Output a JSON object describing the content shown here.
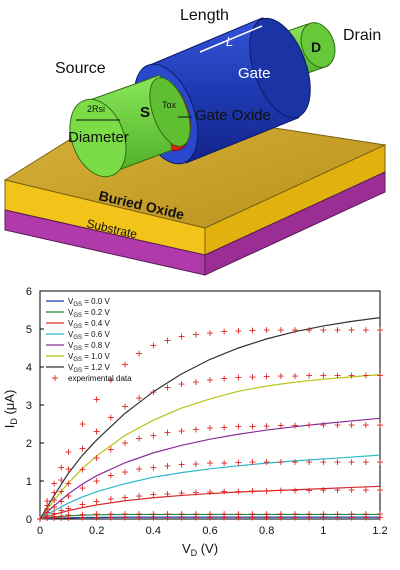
{
  "diagram": {
    "labels": {
      "length": "Length",
      "l": "L",
      "d": "D",
      "drain": "Drain",
      "source": "Source",
      "gate": "Gate",
      "s": "S",
      "rsi": "2Rsi",
      "tox": "Tox",
      "gate_oxide": "Gate Oxide",
      "diameter": "Diameter",
      "buried_oxide": "Buried Oxide",
      "substrate": "Substrate"
    },
    "colors": {
      "gate": "#1f3bb3",
      "channel": "#6fd13a",
      "oxide": "#e31a1a",
      "buried_oxide": "#f2c419",
      "substrate": "#b03aa9"
    }
  },
  "chart_data": {
    "type": "line",
    "xlabel": "V",
    "xlabel_sub": "D",
    "xlabel_unit": " (V)",
    "ylabel": "I",
    "ylabel_sub": "D",
    "ylabel_unit": " (μA)",
    "xlim": [
      0,
      1.2
    ],
    "ylim": [
      0,
      6
    ],
    "xticks": [
      "0",
      "0.2",
      "0.4",
      "0.6",
      "0.8",
      "1",
      "1.2"
    ],
    "yticks": [
      "0",
      "1",
      "2",
      "3",
      "4",
      "5",
      "6"
    ],
    "legend_position": "top-left",
    "x": [
      0,
      0.05,
      0.1,
      0.15,
      0.2,
      0.3,
      0.4,
      0.5,
      0.6,
      0.7,
      0.8,
      0.9,
      1.0,
      1.1,
      1.2
    ],
    "series": [
      {
        "name": "V",
        "sub": "GS",
        "suffix": " = 0.0 V",
        "color": "#1f3bb3",
        "values": [
          0,
          0.02,
          0.03,
          0.04,
          0.04,
          0.05,
          0.05,
          0.05,
          0.05,
          0.05,
          0.05,
          0.05,
          0.05,
          0.05,
          0.05
        ]
      },
      {
        "name": "V",
        "sub": "GS",
        "suffix": " = 0.2 V",
        "color": "#1a8a3a",
        "values": [
          0,
          0.05,
          0.08,
          0.1,
          0.11,
          0.12,
          0.12,
          0.12,
          0.12,
          0.12,
          0.12,
          0.12,
          0.12,
          0.12,
          0.12
        ]
      },
      {
        "name": "V",
        "sub": "GS",
        "suffix": " = 0.4 V",
        "color": "#d62728",
        "values": [
          0,
          0.12,
          0.22,
          0.3,
          0.37,
          0.48,
          0.56,
          0.62,
          0.67,
          0.71,
          0.74,
          0.77,
          0.8,
          0.83,
          0.86
        ]
      },
      {
        "name": "V",
        "sub": "GS",
        "suffix": " = 0.6 V",
        "color": "#2ab8c8",
        "values": [
          0,
          0.22,
          0.42,
          0.58,
          0.72,
          0.93,
          1.1,
          1.22,
          1.32,
          1.4,
          1.47,
          1.53,
          1.58,
          1.63,
          1.68
        ]
      },
      {
        "name": "V",
        "sub": "GS",
        "suffix": " = 0.8 V",
        "color": "#8a2d9a",
        "values": [
          0,
          0.35,
          0.66,
          0.92,
          1.14,
          1.48,
          1.74,
          1.94,
          2.1,
          2.23,
          2.34,
          2.43,
          2.51,
          2.58,
          2.65
        ]
      },
      {
        "name": "V",
        "sub": "GS",
        "suffix": " = 1.0 V",
        "color": "#b8c218",
        "values": [
          0,
          0.5,
          0.95,
          1.33,
          1.66,
          2.2,
          2.6,
          2.92,
          3.16,
          3.36,
          3.5,
          3.6,
          3.68,
          3.74,
          3.8
        ]
      },
      {
        "name": "V",
        "sub": "GS",
        "suffix": " = 1.2 V",
        "color": "#333333",
        "values": [
          0,
          0.62,
          1.2,
          1.68,
          2.08,
          2.78,
          3.35,
          3.82,
          4.2,
          4.5,
          4.74,
          4.93,
          5.08,
          5.2,
          5.3
        ]
      }
    ],
    "experimental": {
      "name": "experimental data",
      "marker": "+",
      "color": "#e0201e",
      "x": [
        0,
        0.025,
        0.05,
        0.075,
        0.1,
        0.15,
        0.2,
        0.25,
        0.3,
        0.35,
        0.4,
        0.45,
        0.5,
        0.55,
        0.6,
        0.65,
        0.7,
        0.75,
        0.8,
        0.85,
        0.9,
        0.95,
        1.0,
        1.05,
        1.1,
        1.15,
        1.2
      ],
      "series": [
        [
          0,
          0.02,
          0.02,
          0.03,
          0.03,
          0.04,
          0.04,
          0.04,
          0.04,
          0.04,
          0.04,
          0.04,
          0.04,
          0.04,
          0.04,
          0.04,
          0.04,
          0.04,
          0.04,
          0.04,
          0.04,
          0.04,
          0.04,
          0.04,
          0.04,
          0.04,
          0.04
        ],
        [
          0,
          0.04,
          0.06,
          0.08,
          0.1,
          0.12,
          0.13,
          0.13,
          0.13,
          0.13,
          0.13,
          0.13,
          0.13,
          0.13,
          0.13,
          0.13,
          0.13,
          0.13,
          0.13,
          0.13,
          0.13,
          0.13,
          0.13,
          0.13,
          0.13,
          0.13,
          0.13
        ],
        [
          0,
          0.08,
          0.15,
          0.22,
          0.28,
          0.38,
          0.46,
          0.52,
          0.57,
          0.61,
          0.64,
          0.66,
          0.68,
          0.7,
          0.71,
          0.72,
          0.73,
          0.74,
          0.74,
          0.75,
          0.75,
          0.75,
          0.76,
          0.76,
          0.76,
          0.76,
          0.76
        ],
        [
          0,
          0.17,
          0.32,
          0.46,
          0.6,
          0.82,
          1.0,
          1.14,
          1.24,
          1.31,
          1.36,
          1.4,
          1.43,
          1.45,
          1.47,
          1.48,
          1.49,
          1.5,
          1.5,
          1.5,
          1.5,
          1.5,
          1.5,
          1.5,
          1.5,
          1.5,
          1.5
        ],
        [
          0,
          0.26,
          0.5,
          0.73,
          0.94,
          1.3,
          1.6,
          1.83,
          2.0,
          2.12,
          2.2,
          2.27,
          2.32,
          2.36,
          2.39,
          2.41,
          2.43,
          2.44,
          2.45,
          2.46,
          2.46,
          2.47,
          2.47,
          2.47,
          2.47,
          2.47,
          2.47
        ],
        [
          0,
          0.36,
          0.7,
          1.02,
          1.32,
          1.85,
          2.3,
          2.67,
          2.96,
          3.18,
          3.34,
          3.46,
          3.55,
          3.61,
          3.66,
          3.7,
          3.72,
          3.74,
          3.75,
          3.76,
          3.76,
          3.77,
          3.77,
          3.77,
          3.77,
          3.77,
          3.77
        ],
        [
          0,
          0.48,
          0.93,
          1.36,
          1.76,
          2.5,
          3.14,
          3.66,
          4.06,
          4.36,
          4.56,
          4.7,
          4.8,
          4.86,
          4.9,
          4.93,
          4.95,
          4.96,
          4.97,
          4.97,
          4.97,
          4.97,
          4.97,
          4.97,
          4.97,
          4.97,
          4.97
        ]
      ]
    }
  }
}
